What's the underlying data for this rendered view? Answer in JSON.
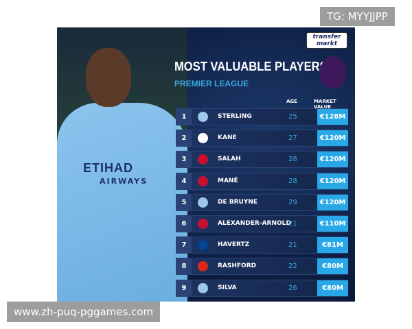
{
  "logo": "transfermarkt",
  "title": "MOST VALUABLE PLAYERS",
  "subtitle": "PREMIER LEAGUE",
  "headers": {
    "age": "AGE",
    "value": "MARKET VALUE"
  },
  "shirt": {
    "sponsor": "ETIHAD",
    "sponsor2": "AIRWAYS"
  },
  "colors": {
    "accent": "#28a8e6",
    "age": "#3aa6dc"
  },
  "players": [
    {
      "rank": "1",
      "club": "man-city",
      "name": "STERLING",
      "age": "25",
      "value": "€128M"
    },
    {
      "rank": "2",
      "club": "tottenham",
      "name": "KANE",
      "age": "27",
      "value": "€120M"
    },
    {
      "rank": "3",
      "club": "liverpool",
      "name": "SALAH",
      "age": "28",
      "value": "€120M"
    },
    {
      "rank": "4",
      "club": "liverpool",
      "name": "MANÉ",
      "age": "28",
      "value": "€120M"
    },
    {
      "rank": "5",
      "club": "man-city",
      "name": "DE BRUYNE",
      "age": "29",
      "value": "€120M"
    },
    {
      "rank": "6",
      "club": "liverpool",
      "name": "ALEXANDER-ARNOLD",
      "age": "21",
      "value": "€110M"
    },
    {
      "rank": "7",
      "club": "chelsea",
      "name": "HAVERTZ",
      "age": "21",
      "value": "€81M"
    },
    {
      "rank": "8",
      "club": "man-united",
      "name": "RASHFORD",
      "age": "22",
      "value": "€80M"
    },
    {
      "rank": "9",
      "club": "man-city",
      "name": "SILVA",
      "age": "26",
      "value": "€80M"
    }
  ],
  "watermark_top": "TG: MYYJJPP",
  "watermark_bottom": "www.zh-puq-pggames.com"
}
